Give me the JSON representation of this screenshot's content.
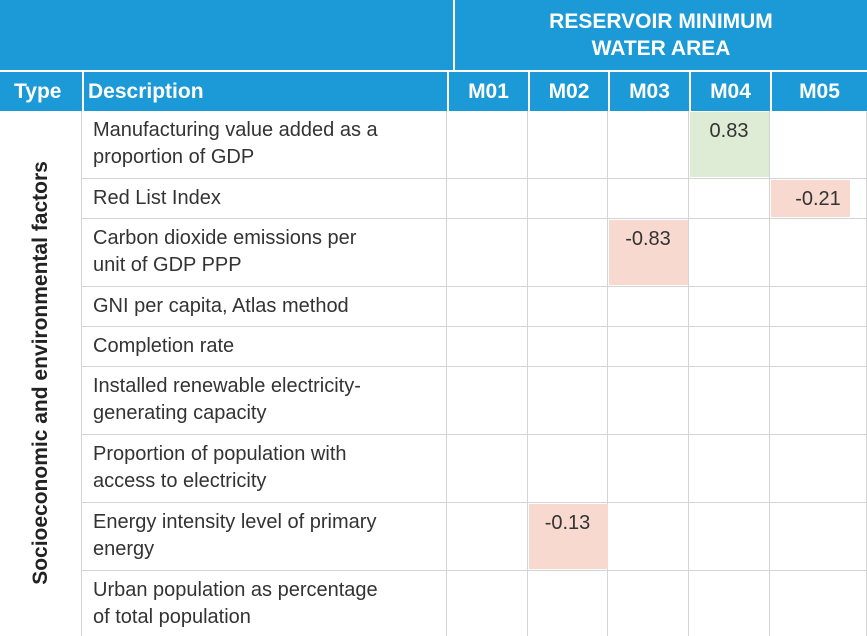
{
  "header": {
    "group_title": "RESERVOIR MINIMUM WATER AREA",
    "columns": [
      "Type",
      "Description",
      "M01",
      "M02",
      "M03",
      "M04",
      "M05"
    ]
  },
  "table": {
    "type": "Socioeconomic and environmental factors",
    "rows": [
      {
        "description": [
          "Manufacturing value added as a",
          "proportion of GDP"
        ],
        "values": [
          null,
          null,
          null,
          0.83,
          null
        ]
      },
      {
        "description": [
          "Red List Index"
        ],
        "values": [
          null,
          null,
          null,
          null,
          -0.21
        ]
      },
      {
        "description": [
          "Carbon dioxide emissions per",
          "unit of GDP PPP"
        ],
        "values": [
          null,
          null,
          -0.83,
          null,
          null
        ]
      },
      {
        "description": [
          "GNI per capita, Atlas method"
        ],
        "values": [
          null,
          null,
          null,
          null,
          null
        ]
      },
      {
        "description": [
          "Completion rate"
        ],
        "values": [
          null,
          null,
          null,
          null,
          null
        ]
      },
      {
        "description": [
          "Installed renewable electricity-",
          "generating capacity"
        ],
        "values": [
          null,
          null,
          null,
          null,
          null
        ]
      },
      {
        "description": [
          "Proportion of population with",
          "access to electricity"
        ],
        "values": [
          null,
          null,
          null,
          null,
          null
        ]
      },
      {
        "description": [
          "Energy intensity level of primary",
          "energy"
        ],
        "values": [
          null,
          -0.13,
          null,
          null,
          null
        ]
      },
      {
        "description": [
          "Urban population as percentage",
          "of total population"
        ],
        "values": [
          null,
          null,
          null,
          null,
          null
        ]
      }
    ]
  }
}
